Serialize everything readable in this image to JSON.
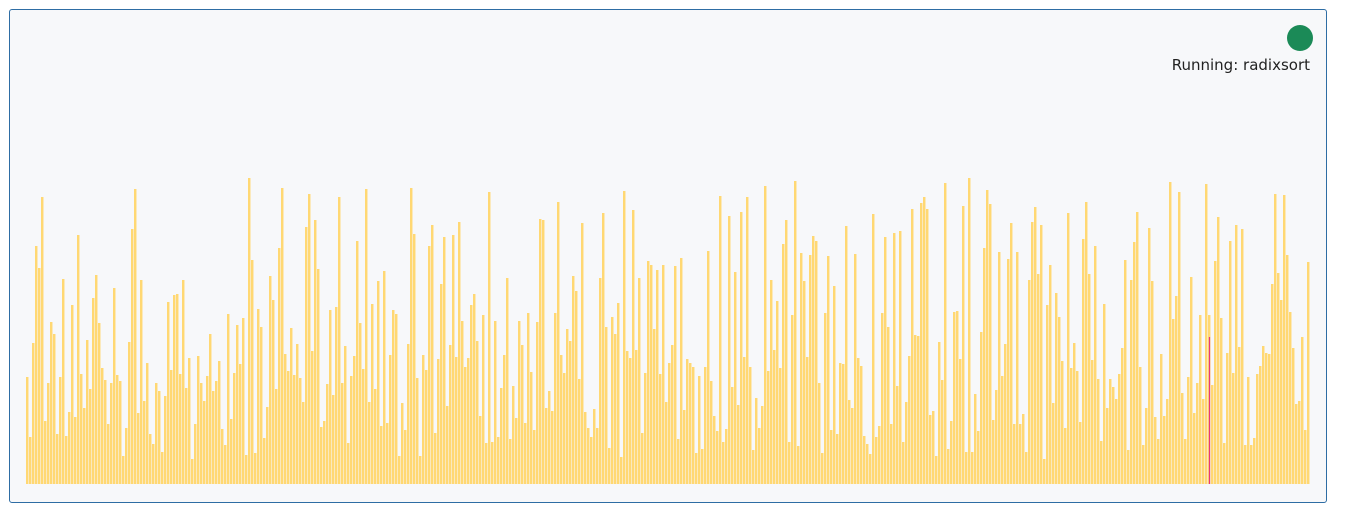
{
  "status": {
    "text": "Running: radixsort",
    "indicator_color": "#1b8a57",
    "indicator_state": "running"
  },
  "visualizer": {
    "algorithm": "radixsort",
    "bar_color": "#ffd873",
    "highlight_color": "#e6397a",
    "bar_count": 428,
    "highlight_index": 394,
    "highlight_value": 0.48
  }
}
